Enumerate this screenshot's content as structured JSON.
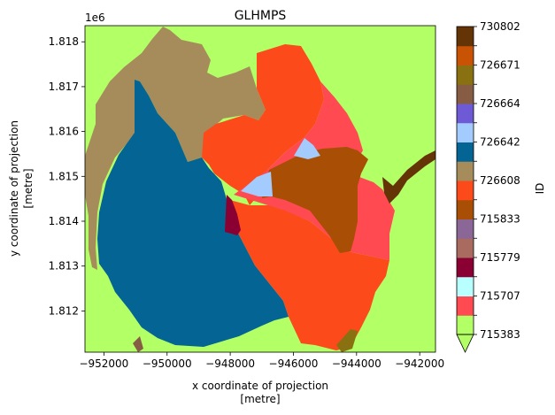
{
  "chart_data": {
    "type": "heatmap",
    "title": "GLHMPS",
    "xlabel": "x coordinate of projection",
    "xlabel_unit": "[metre]",
    "ylabel": "y coordinate of projection",
    "ylabel_unit": "[metre]",
    "x_ticks": [
      -952000,
      -950000,
      -948000,
      -946000,
      -944000,
      -942000
    ],
    "x_tick_labels": [
      "−952000",
      "−950000",
      "−948000",
      "−946000",
      "−944000",
      "−942000"
    ],
    "xlim": [
      -952600,
      -941500
    ],
    "y_ticks": [
      1.812,
      1.813,
      1.814,
      1.815,
      1.816,
      1.817,
      1.818
    ],
    "y_tick_labels": [
      "1.812",
      "1.813",
      "1.814",
      "1.815",
      "1.816",
      "1.817",
      "1.818"
    ],
    "ylim": [
      1.81108,
      1.81836
    ],
    "y_offset_label": "1e6",
    "colorbar": {
      "label": "ID",
      "extend": "min",
      "vmin": 715383,
      "vmax": 730802,
      "levels": [
        {
          "color": "#b3ff66"
        },
        {
          "color": "#ff4a52"
        },
        {
          "color": "#b8ffff"
        },
        {
          "color": "#8b0033"
        },
        {
          "color": "#a96b5f"
        },
        {
          "color": "#8a6796"
        },
        {
          "color": "#a84f05"
        },
        {
          "color": "#fc4a1b"
        },
        {
          "color": "#a78c5b"
        },
        {
          "color": "#046493"
        },
        {
          "color": "#a4cbfd"
        },
        {
          "color": "#6e5ad4"
        },
        {
          "color": "#865c44"
        },
        {
          "color": "#897112"
        },
        {
          "color": "#c95304"
        },
        {
          "color": "#643306"
        }
      ],
      "tick_labels": [
        "715383",
        "715707",
        "715779",
        "715833",
        "726608",
        "726642",
        "726664",
        "726671",
        "730802"
      ]
    },
    "regions": [
      {
        "id_color": "#b3ff66",
        "name": "background"
      },
      {
        "id_color": "#a78c5b"
      },
      {
        "id_color": "#046493"
      },
      {
        "id_color": "#fc4a1b"
      },
      {
        "id_color": "#ff4a52"
      },
      {
        "id_color": "#a84f05"
      },
      {
        "id_color": "#a4cbfd"
      },
      {
        "id_color": "#8b0033"
      },
      {
        "id_color": "#643306"
      },
      {
        "id_color": "#865c44"
      },
      {
        "id_color": "#897112"
      }
    ]
  }
}
